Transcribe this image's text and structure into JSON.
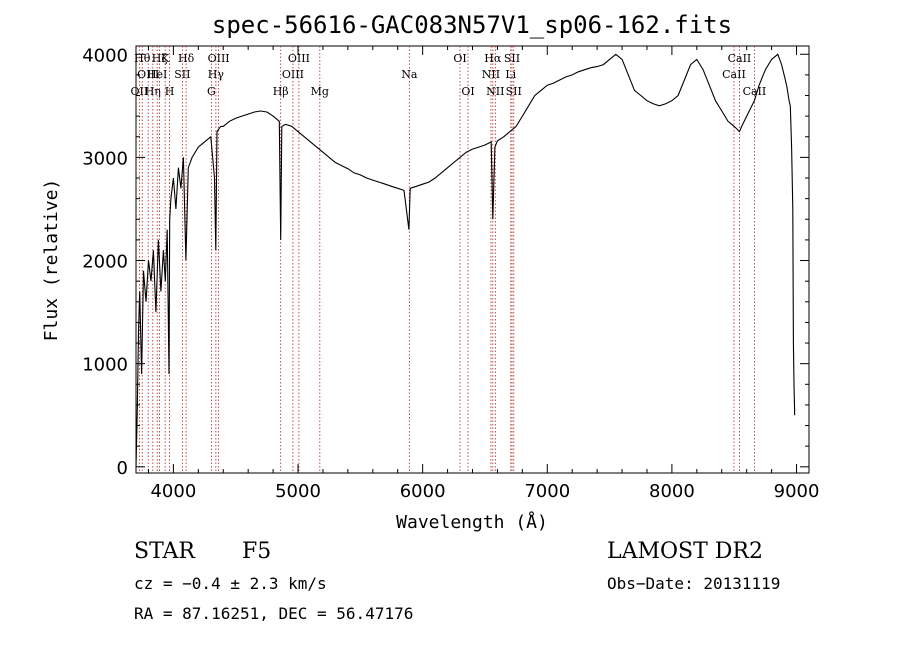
{
  "chart_data": {
    "type": "line",
    "title": "spec-56616-GAC083N57V1_sp06-162.fits",
    "xlabel": "Wavelength (Å)",
    "ylabel": "Flux (relative)",
    "xlim": [
      3700,
      9100
    ],
    "ylim": [
      -60,
      4080
    ],
    "xticks": [
      "4000",
      "5000",
      "6000",
      "7000",
      "8000",
      "9000"
    ],
    "yticks": [
      "0",
      "1000",
      "2000",
      "3000",
      "4000"
    ],
    "xtick_values": [
      4000,
      5000,
      6000,
      7000,
      8000,
      9000
    ],
    "ytick_values": [
      0,
      1000,
      2000,
      3000,
      4000
    ],
    "grid": false,
    "series": [
      {
        "x": [
          3700,
          3710,
          3720,
          3730,
          3745,
          3760,
          3780,
          3800,
          3820,
          3840,
          3860,
          3880,
          3900,
          3920,
          3935,
          3950,
          3965,
          3970,
          3980,
          4000,
          4020,
          4040,
          4060,
          4080,
          4100,
          4120,
          4150,
          4200,
          4250,
          4300,
          4330,
          4340,
          4350,
          4380,
          4400,
          4450,
          4500,
          4550,
          4600,
          4650,
          4700,
          4750,
          4800,
          4850,
          4861,
          4870,
          4900,
          4950,
          5000,
          5050,
          5100,
          5150,
          5200,
          5250,
          5300,
          5350,
          5400,
          5450,
          5500,
          5550,
          5600,
          5650,
          5700,
          5750,
          5800,
          5850,
          5890,
          5900,
          5950,
          6000,
          6050,
          6100,
          6150,
          6200,
          6250,
          6300,
          6350,
          6400,
          6450,
          6500,
          6550,
          6563,
          6580,
          6600,
          6650,
          6700,
          6750,
          6800,
          6850,
          6900,
          6950,
          7000,
          7050,
          7100,
          7150,
          7200,
          7250,
          7300,
          7350,
          7400,
          7450,
          7500,
          7550,
          7600,
          7650,
          7700,
          7750,
          7800,
          7850,
          7900,
          7950,
          8000,
          8050,
          8100,
          8150,
          8200,
          8250,
          8300,
          8350,
          8400,
          8450,
          8500,
          8542,
          8560,
          8600,
          8662,
          8700,
          8750,
          8800,
          8850,
          8880,
          8900,
          8920,
          8940,
          8950,
          8960,
          8970,
          8975,
          8980,
          8985
        ],
        "y": [
          0,
          500,
          1300,
          1700,
          900,
          1900,
          1600,
          2000,
          1800,
          2100,
          1500,
          2200,
          1700,
          2100,
          1800,
          2300,
          900,
          2400,
          2600,
          2800,
          2500,
          2900,
          2700,
          3000,
          2000,
          2900,
          3000,
          3100,
          3150,
          3200,
          2800,
          2100,
          3250,
          3300,
          3300,
          3350,
          3380,
          3400,
          3420,
          3440,
          3450,
          3440,
          3400,
          3350,
          2200,
          3300,
          3320,
          3300,
          3250,
          3200,
          3150,
          3100,
          3050,
          3000,
          2950,
          2920,
          2890,
          2850,
          2830,
          2800,
          2780,
          2760,
          2740,
          2720,
          2700,
          2680,
          2300,
          2700,
          2720,
          2740,
          2760,
          2800,
          2850,
          2900,
          2950,
          3000,
          3050,
          3080,
          3100,
          3120,
          3150,
          2400,
          3100,
          3160,
          3200,
          3250,
          3300,
          3400,
          3500,
          3600,
          3650,
          3700,
          3720,
          3750,
          3780,
          3800,
          3830,
          3850,
          3870,
          3880,
          3900,
          3950,
          4000,
          3950,
          3800,
          3650,
          3600,
          3550,
          3520,
          3500,
          3520,
          3550,
          3600,
          3750,
          3900,
          3950,
          3850,
          3700,
          3550,
          3450,
          3350,
          3300,
          3250,
          3300,
          3400,
          3550,
          3700,
          3850,
          3950,
          4000,
          3900,
          3800,
          3700,
          3550,
          3500,
          3100,
          2500,
          1200,
          800,
          500
        ]
      }
    ],
    "spectral_lines": [
      {
        "wave": 3727,
        "labels": [
          "OII"
        ],
        "row": 2
      },
      {
        "wave": 3750,
        "labels": [
          "Hθ"
        ],
        "row": 0
      },
      {
        "wave": 3798,
        "labels": [
          "OIII"
        ],
        "row": 1
      },
      {
        "wave": 3835,
        "labels": [
          "Hη"
        ],
        "row": 2
      },
      {
        "wave": 3870,
        "labels": [
          "HeI"
        ],
        "row": 1
      },
      {
        "wave": 3889,
        "labels": [
          "Hζ"
        ],
        "row": 0
      },
      {
        "wave": 3934,
        "labels": [
          "K"
        ],
        "row": 0
      },
      {
        "wave": 3969,
        "labels": [
          "H"
        ],
        "row": 2
      },
      {
        "wave": 4072,
        "labels": [
          "SII"
        ],
        "row": 1
      },
      {
        "wave": 4102,
        "labels": [
          "Hδ"
        ],
        "row": 0
      },
      {
        "wave": 4305,
        "labels": [
          "G"
        ],
        "row": 2
      },
      {
        "wave": 4341,
        "labels": [
          "Hγ"
        ],
        "row": 1
      },
      {
        "wave": 4363,
        "labels": [
          "OIII"
        ],
        "row": 0
      },
      {
        "wave": 4861,
        "labels": [
          "Hβ"
        ],
        "row": 2
      },
      {
        "wave": 4959,
        "labels": [
          "OIII"
        ],
        "row": 1
      },
      {
        "wave": 5007,
        "labels": [
          "OIII"
        ],
        "row": 0
      },
      {
        "wave": 5175,
        "labels": [
          "Mg"
        ],
        "row": 2
      },
      {
        "wave": 5893,
        "labels": [
          "Na"
        ],
        "row": 1
      },
      {
        "wave": 6300,
        "labels": [
          "OI"
        ],
        "row": 0
      },
      {
        "wave": 6364,
        "labels": [
          "OI"
        ],
        "row": 2
      },
      {
        "wave": 6548,
        "labels": [
          "NII"
        ],
        "row": 1
      },
      {
        "wave": 6563,
        "labels": [
          "Hα"
        ],
        "row": 0
      },
      {
        "wave": 6583,
        "labels": [
          "NII"
        ],
        "row": 2
      },
      {
        "wave": 6707,
        "labels": [
          "Li"
        ],
        "row": 1
      },
      {
        "wave": 6717,
        "labels": [
          "SII"
        ],
        "row": 0
      },
      {
        "wave": 6731,
        "labels": [
          "SII"
        ],
        "row": 2
      },
      {
        "wave": 8498,
        "labels": [
          "CaII"
        ],
        "row": 1
      },
      {
        "wave": 8542,
        "labels": [
          "CaII"
        ],
        "row": 0
      },
      {
        "wave": 8662,
        "labels": [
          "CaII"
        ],
        "row": 2
      }
    ]
  },
  "info": {
    "class": "STAR",
    "subclass": "F5",
    "survey": "LAMOST DR2",
    "cz": "cz = −0.4 ± 2.3 km/s",
    "obs_date": "Obs−Date: 20131119",
    "radec": "RA =  87.16251, DEC =  56.47176"
  }
}
